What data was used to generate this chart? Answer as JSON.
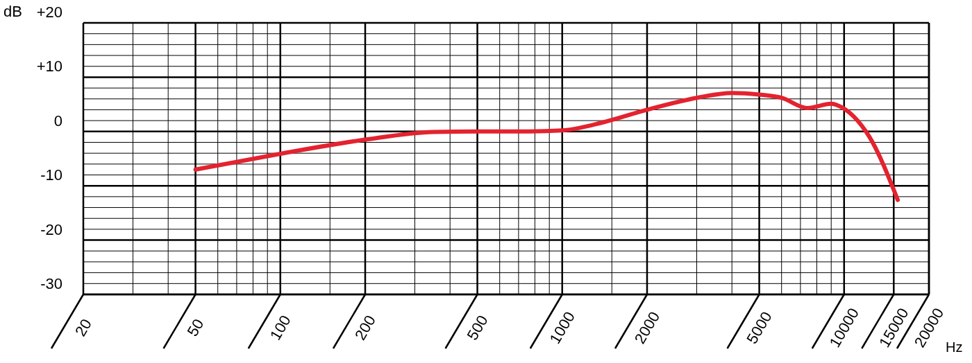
{
  "chart_data": {
    "type": "line",
    "xlabel": "Hz",
    "ylabel": "dB",
    "log": "x",
    "grid": true,
    "xlim": [
      20,
      20000
    ],
    "ylim": [
      -30,
      20
    ],
    "xticks": [
      20,
      {
        "value": 30,
        "label": null
      },
      {
        "value": 40,
        "label": null
      },
      50,
      {
        "value": 60,
        "label": null
      },
      {
        "value": 70,
        "label": null
      },
      {
        "value": 80,
        "label": null
      },
      {
        "value": 90,
        "label": null
      },
      100,
      {
        "value": 150,
        "label": null
      },
      200,
      {
        "value": 300,
        "label": null
      },
      {
        "value": 400,
        "label": null
      },
      500,
      {
        "value": 600,
        "label": null
      },
      {
        "value": 700,
        "label": null
      },
      {
        "value": 800,
        "label": null
      },
      {
        "value": 900,
        "label": null
      },
      1000,
      {
        "value": 1500,
        "label": null
      },
      2000,
      {
        "value": 3000,
        "label": null
      },
      {
        "value": 4000,
        "label": null
      },
      5000,
      {
        "value": 6000,
        "label": null
      },
      {
        "value": 7000,
        "label": null
      },
      {
        "value": 8000,
        "label": null
      },
      {
        "value": 9000,
        "label": null
      },
      10000,
      15000,
      20000
    ],
    "yticks": [
      -30,
      {
        "value": -28,
        "label": null
      },
      {
        "value": -26,
        "label": null
      },
      {
        "value": -24,
        "label": null
      },
      {
        "value": -22,
        "label": null
      },
      -20,
      {
        "value": -18,
        "label": null
      },
      {
        "value": -16,
        "label": null
      },
      {
        "value": -14,
        "label": null
      },
      {
        "value": -12,
        "label": null
      },
      -10,
      {
        "value": -8,
        "label": null
      },
      {
        "value": -6,
        "label": null
      },
      {
        "value": -4,
        "label": null
      },
      {
        "value": -2,
        "label": null
      },
      0,
      {
        "value": 2,
        "label": null
      },
      {
        "value": 4,
        "label": null
      },
      {
        "value": 6,
        "label": null
      },
      {
        "value": 8,
        "label": null
      },
      {
        "value": 10,
        "label": "+10"
      },
      {
        "value": 12,
        "label": null
      },
      {
        "value": 14,
        "label": null
      },
      {
        "value": 16,
        "label": null
      },
      {
        "value": 18,
        "label": null
      },
      {
        "value": 20,
        "label": "+20"
      }
    ],
    "series": [
      {
        "color": "#e3232f",
        "x": [
          50,
          100,
          200,
          350,
          500,
          700,
          1000,
          1400,
          2000,
          3000,
          4000,
          5000,
          6000,
          7400,
          9000,
          9600,
          10800,
          12300,
          15500
        ],
        "values": [
          -7,
          -4.1,
          -1.5,
          -0.1,
          0,
          0,
          0.2,
          1.7,
          4,
          6.2,
          7.1,
          6.8,
          6.2,
          4.3,
          5.1,
          4.7,
          2.8,
          -1,
          -12.6
        ]
      }
    ]
  }
}
